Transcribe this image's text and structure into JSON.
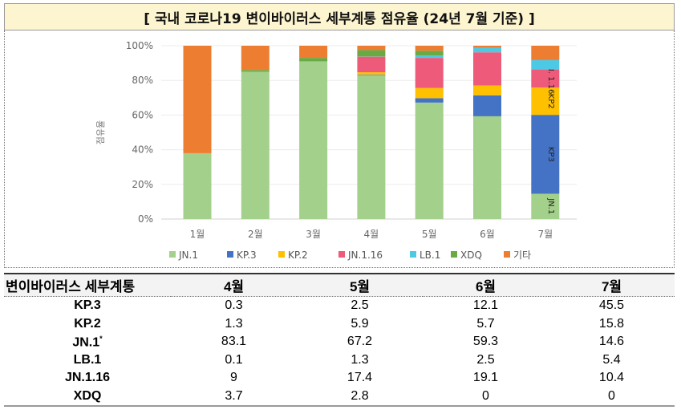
{
  "title": "[ 국내 코로나19 변이바이러스 세부계통 점유율 (24년 7월 기준) ]",
  "chart_data": {
    "type": "bar",
    "stacked": true,
    "categories": [
      "1월",
      "2월",
      "3월",
      "4월",
      "5월",
      "6월",
      "7월"
    ],
    "ylabel": "점유율",
    "ylim": [
      0,
      100
    ],
    "yticks": [
      "0%",
      "20%",
      "40%",
      "60%",
      "80%",
      "100%"
    ],
    "grid": true,
    "legend_position": "bottom",
    "series": [
      {
        "name": "JN.1",
        "color": "#a3d08a",
        "values": [
          38,
          85,
          91,
          83.1,
          67.2,
          59.3,
          14.6
        ]
      },
      {
        "name": "KP.3",
        "color": "#4472c4",
        "values": [
          0,
          0,
          0,
          0.3,
          2.5,
          12.1,
          45.5
        ]
      },
      {
        "name": "KP.2",
        "color": "#ffc000",
        "values": [
          0,
          0,
          0,
          1.3,
          5.9,
          5.7,
          15.8
        ]
      },
      {
        "name": "JN.1.16",
        "color": "#ee5a7a",
        "values": [
          0,
          0,
          0,
          9,
          17.4,
          19.1,
          10.4
        ]
      },
      {
        "name": "LB.1",
        "color": "#4cc9e4",
        "values": [
          0,
          0,
          0,
          0.1,
          1.3,
          2.5,
          5.4
        ]
      },
      {
        "name": "XDQ",
        "color": "#6aaa44",
        "values": [
          0,
          1,
          2,
          3.7,
          2.8,
          0,
          0
        ]
      },
      {
        "name": "기타",
        "color": "#ed7d31",
        "values": [
          62,
          14,
          7,
          2.5,
          2.9,
          1.3,
          8.3
        ]
      }
    ],
    "segment_labels": [
      {
        "category": "7월",
        "series": "JN.1",
        "text": "JN.1"
      },
      {
        "category": "7월",
        "series": "KP.3",
        "text": "KP3"
      },
      {
        "category": "7월",
        "series": "KP.2",
        "text": "KP2"
      },
      {
        "category": "7월",
        "series": "JN.1.16",
        "text": "JN. 1.16"
      }
    ]
  },
  "table": {
    "headers": [
      "변이바이러스 세부계통",
      "4월",
      "5월",
      "6월",
      "7월"
    ],
    "rows": [
      {
        "name": "KP.3",
        "sup": "",
        "values": [
          "0.3",
          "2.5",
          "12.1",
          "45.5"
        ]
      },
      {
        "name": "KP.2",
        "sup": "",
        "values": [
          "1.3",
          "5.9",
          "5.7",
          "15.8"
        ]
      },
      {
        "name": "JN.1",
        "sup": "*",
        "values": [
          "83.1",
          "67.2",
          "59.3",
          "14.6"
        ]
      },
      {
        "name": "LB.1",
        "sup": "",
        "values": [
          "0.1",
          "1.3",
          "2.5",
          "5.4"
        ]
      },
      {
        "name": "JN.1.16",
        "sup": "",
        "values": [
          "9",
          "17.4",
          "19.1",
          "10.4"
        ]
      },
      {
        "name": "XDQ",
        "sup": "",
        "values": [
          "3.7",
          "2.8",
          "0",
          "0"
        ]
      }
    ]
  }
}
